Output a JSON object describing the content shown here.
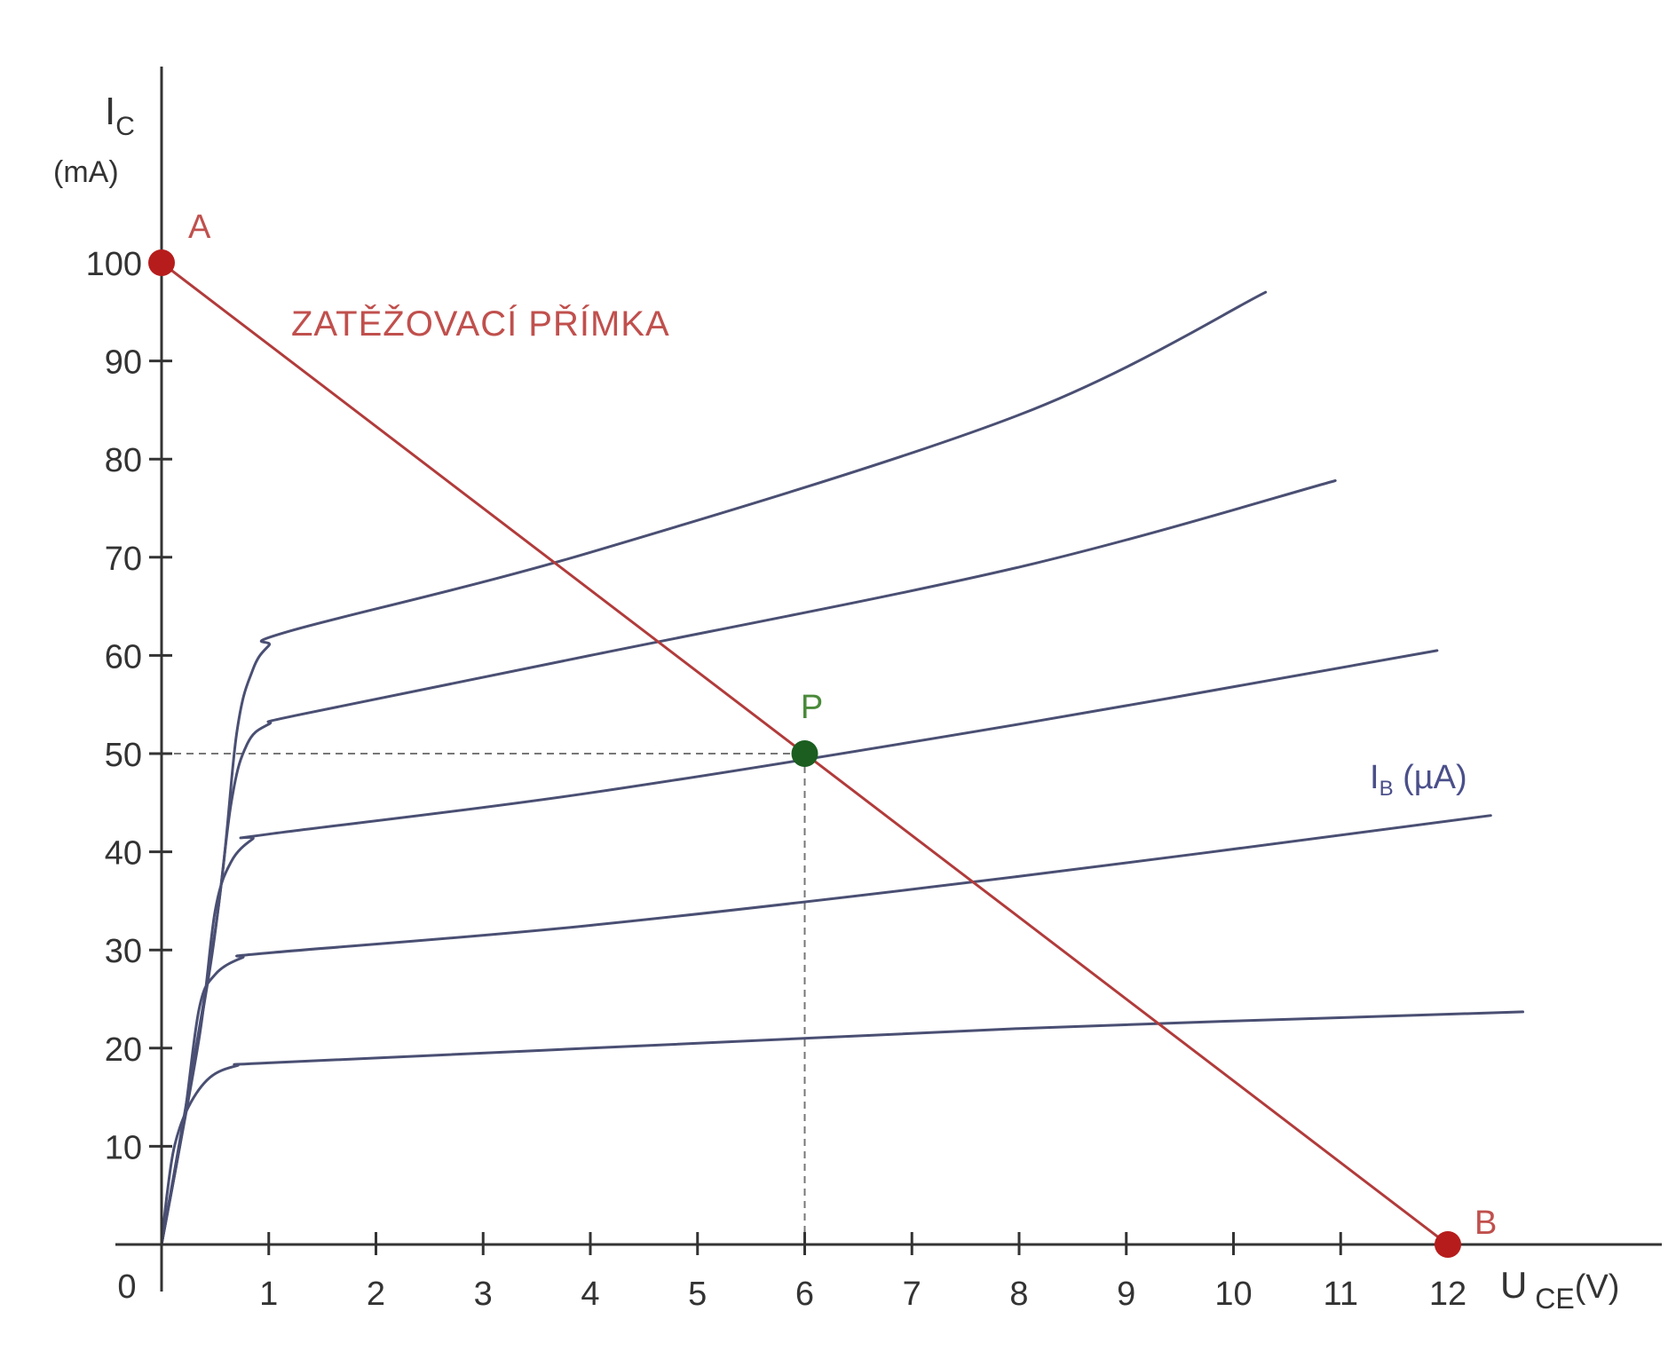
{
  "chart_data": {
    "type": "line",
    "title": "",
    "x_axis": {
      "label": "U",
      "label_subscript": "CE",
      "label_unit": "(V)",
      "range": [
        0,
        12
      ],
      "ticks": [
        1,
        2,
        3,
        4,
        5,
        6,
        7,
        8,
        9,
        10,
        11,
        12
      ],
      "origin_label": "0"
    },
    "y_axis": {
      "label": "I",
      "label_subscript": "C",
      "label_unit": "(mA)",
      "range": [
        0,
        100
      ],
      "ticks": [
        10,
        20,
        30,
        40,
        50,
        60,
        70,
        80,
        90,
        100
      ]
    },
    "grid": false,
    "curves_label": {
      "text": "I",
      "subscript": "B",
      "unit": "(µA)"
    },
    "series": [
      {
        "points": [
          [
            0,
            0
          ],
          [
            0.05,
            5
          ],
          [
            0.12,
            10
          ],
          [
            0.25,
            14
          ],
          [
            0.45,
            17
          ],
          [
            0.7,
            18.2
          ],
          [
            1.0,
            18.5
          ],
          [
            4,
            20
          ],
          [
            8,
            22
          ],
          [
            12.7,
            23.7
          ]
        ]
      },
      {
        "points": [
          [
            0,
            0
          ],
          [
            0.2,
            12
          ],
          [
            0.35,
            24
          ],
          [
            0.5,
            27.5
          ],
          [
            0.75,
            29.2
          ],
          [
            1.0,
            29.7
          ],
          [
            4,
            32.5
          ],
          [
            8,
            37.5
          ],
          [
            12.4,
            43.7
          ]
        ]
      },
      {
        "points": [
          [
            0,
            0
          ],
          [
            0.35,
            21
          ],
          [
            0.5,
            34
          ],
          [
            0.65,
            39
          ],
          [
            0.85,
            41.3
          ],
          [
            1.0,
            41.8
          ],
          [
            4,
            46
          ],
          [
            8,
            53
          ],
          [
            11.9,
            60.5
          ]
        ]
      },
      {
        "points": [
          [
            0,
            0
          ],
          [
            0.45,
            28
          ],
          [
            0.65,
            45
          ],
          [
            0.8,
            51
          ],
          [
            1.0,
            53
          ],
          [
            1.3,
            54
          ],
          [
            4,
            60
          ],
          [
            8,
            69
          ],
          [
            10.95,
            77.8
          ]
        ]
      },
      {
        "points": [
          [
            0,
            0
          ],
          [
            0.5,
            32
          ],
          [
            0.7,
            52
          ],
          [
            0.85,
            58.5
          ],
          [
            1.0,
            61
          ],
          [
            1.2,
            62.5
          ],
          [
            4,
            70.5
          ],
          [
            8,
            84.5
          ],
          [
            10.3,
            97
          ]
        ]
      }
    ],
    "load_line": {
      "label": "ZATĚŽOVACÍ PŘÍMKA",
      "from": [
        0,
        100
      ],
      "to": [
        12,
        0
      ],
      "color": "#b23b3b"
    },
    "points": [
      {
        "label": "A",
        "x": 0,
        "y": 100,
        "color": "#b71c1c"
      },
      {
        "label": "B",
        "x": 12,
        "y": 0,
        "color": "#b71c1c"
      },
      {
        "label": "P",
        "x": 6,
        "y": 50,
        "color": "#1b5e20"
      }
    ],
    "colors": {
      "curves": "#4a4f73",
      "load_line": "#b23b3b",
      "axes": "#333333",
      "guides": "#777777",
      "point_a_b": "#b71c1c",
      "point_p": "#1b5e20",
      "label_red": "#c0504d",
      "label_green": "#4a8a3a",
      "label_blue": "#4a4f8a"
    }
  }
}
